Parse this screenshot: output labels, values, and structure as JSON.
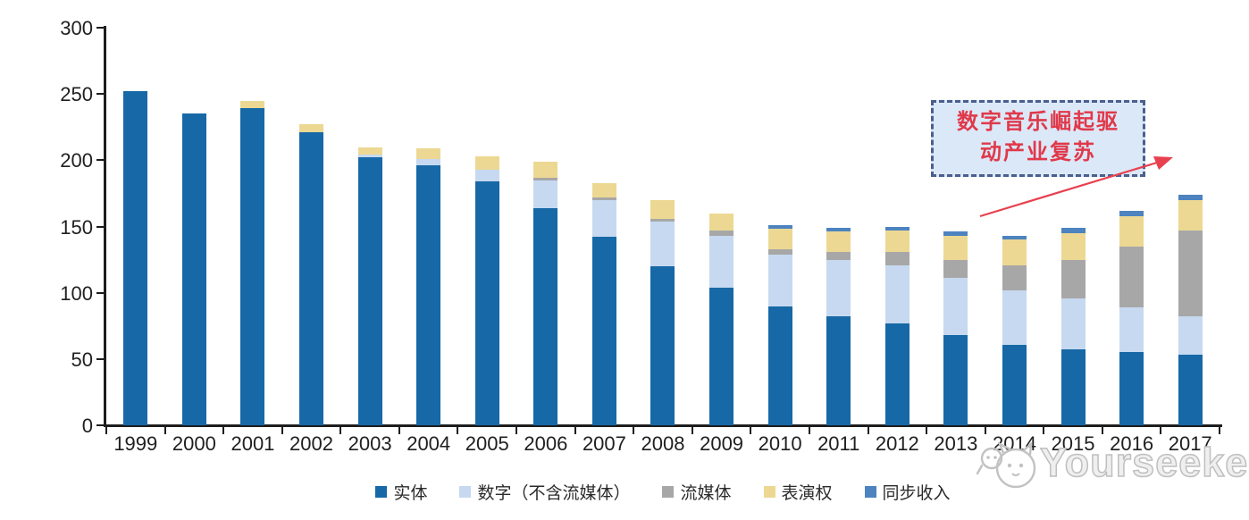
{
  "watermark": {
    "brand": "Yourseeker"
  },
  "annotation": {
    "line1": "数字音乐崛起驱",
    "line2": "动产业复苏",
    "text_color": "#e0394a",
    "border_color": "#4a5f8d",
    "background": "#dbe8f8",
    "arrow_color": "#e8404f"
  },
  "chart_data": {
    "type": "bar",
    "stacked": true,
    "title": "",
    "xlabel": "",
    "ylabel": "",
    "ylim": [
      0,
      300
    ],
    "yticks": [
      0,
      50,
      100,
      150,
      200,
      250,
      300
    ],
    "grid": false,
    "legend_position": "bottom",
    "categories": [
      "1999",
      "2000",
      "2001",
      "2002",
      "2003",
      "2004",
      "2005",
      "2006",
      "2007",
      "2008",
      "2009",
      "2010",
      "2011",
      "2012",
      "2013",
      "2014",
      "2015",
      "2016",
      "2017"
    ],
    "series": [
      {
        "name": "实体",
        "color": "#1768a6",
        "values": [
          252,
          235,
          239,
          221,
          202,
          196,
          184,
          164,
          142,
          120,
          104,
          90,
          82,
          77,
          68,
          61,
          57,
          55,
          53
        ]
      },
      {
        "name": "数字（不含流媒体）",
        "color": "#c6d9f0",
        "values": [
          0,
          0,
          0,
          0,
          2,
          5,
          9,
          21,
          28,
          34,
          39,
          39,
          43,
          44,
          43,
          41,
          39,
          34,
          29
        ]
      },
      {
        "name": "流媒体",
        "color": "#a7a7a7",
        "values": [
          0,
          0,
          0,
          0,
          0,
          0,
          0,
          2,
          2,
          2,
          4,
          4,
          6,
          10,
          14,
          19,
          29,
          46,
          65
        ]
      },
      {
        "name": "表演权",
        "color": "#ecd893",
        "values": [
          0,
          0,
          6,
          6,
          6,
          8,
          10,
          12,
          11,
          14,
          13,
          15,
          15,
          16,
          18,
          19,
          20,
          23,
          23
        ]
      },
      {
        "name": "同步收入",
        "color": "#4d83bf",
        "values": [
          0,
          0,
          0,
          0,
          0,
          0,
          0,
          0,
          0,
          0,
          0,
          3,
          3,
          3,
          3,
          3,
          4,
          4,
          4
        ]
      }
    ]
  }
}
